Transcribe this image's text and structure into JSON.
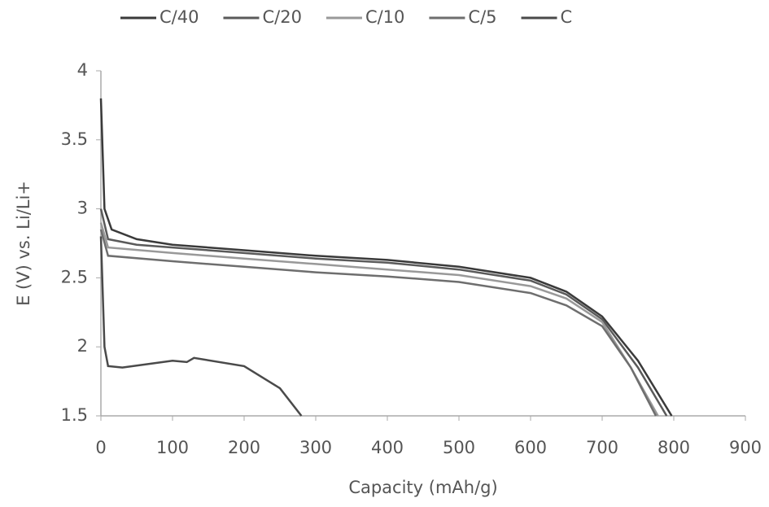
{
  "chart_data": {
    "type": "line",
    "xlabel": "Capacity (mAh/g)",
    "ylabel": "E (V) vs. Li/Li+",
    "xlim": [
      0,
      900
    ],
    "xticks": [
      0,
      100,
      200,
      300,
      400,
      500,
      600,
      700,
      800,
      900
    ],
    "ylim": [
      1.5,
      4
    ],
    "yticks": [
      1.5,
      2,
      2.5,
      3,
      3.5,
      4
    ],
    "grid": false,
    "legend": "top",
    "series": [
      {
        "name": "C/40",
        "color": "#3a3a3a",
        "x": [
          0,
          5,
          15,
          50,
          100,
          200,
          300,
          400,
          500,
          600,
          650,
          700,
          750,
          797
        ],
        "values": [
          3.8,
          3.0,
          2.85,
          2.78,
          2.74,
          2.7,
          2.66,
          2.63,
          2.58,
          2.5,
          2.4,
          2.22,
          1.9,
          1.5
        ]
      },
      {
        "name": "C/20",
        "color": "#5a5a5a",
        "x": [
          0,
          10,
          50,
          100,
          200,
          300,
          400,
          500,
          600,
          650,
          700,
          750,
          790
        ],
        "values": [
          3.0,
          2.78,
          2.74,
          2.72,
          2.68,
          2.64,
          2.61,
          2.56,
          2.48,
          2.38,
          2.2,
          1.85,
          1.5
        ]
      },
      {
        "name": "C/10",
        "color": "#999999",
        "x": [
          0,
          10,
          100,
          200,
          300,
          400,
          500,
          600,
          650,
          700,
          740,
          778
        ],
        "values": [
          2.9,
          2.72,
          2.68,
          2.64,
          2.6,
          2.56,
          2.52,
          2.44,
          2.35,
          2.18,
          1.85,
          1.5
        ]
      },
      {
        "name": "C/5",
        "color": "#6e6e6e",
        "x": [
          0,
          10,
          100,
          200,
          300,
          400,
          500,
          600,
          650,
          700,
          740,
          775
        ],
        "values": [
          2.85,
          2.66,
          2.62,
          2.58,
          2.54,
          2.51,
          2.47,
          2.39,
          2.3,
          2.15,
          1.85,
          1.5
        ]
      },
      {
        "name": "C",
        "color": "#4a4a4a",
        "x": [
          0,
          5,
          10,
          30,
          100,
          120,
          130,
          200,
          250,
          280
        ],
        "values": [
          2.8,
          2.0,
          1.86,
          1.85,
          1.9,
          1.89,
          1.92,
          1.86,
          1.7,
          1.5
        ]
      }
    ]
  }
}
